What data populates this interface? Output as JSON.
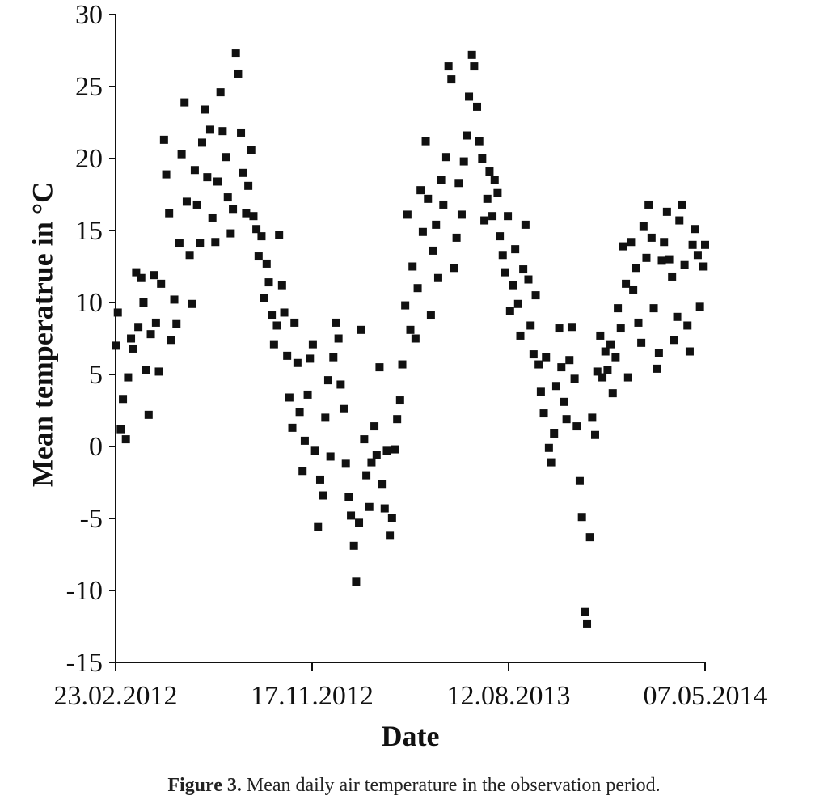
{
  "caption": {
    "label": "Figure 3.",
    "text": " Mean daily air temperature in the observation period."
  },
  "chart_data": {
    "type": "scatter",
    "title": "",
    "xlabel": "Date",
    "ylabel": "Mean temperatrue in °C",
    "xlim": [
      "23.02.2012",
      "07.05.2014"
    ],
    "ylim": [
      -15,
      30
    ],
    "yticks": [
      -15,
      -10,
      -5,
      0,
      5,
      10,
      15,
      20,
      25,
      30
    ],
    "xticks": [
      "23.02.2012",
      "17.11.2012",
      "12.08.2013",
      "07.05.2014"
    ],
    "grid": false,
    "legend": "none",
    "marker": "square",
    "color": "#111111",
    "series": [
      {
        "points": [
          [
            "23.02.2012",
            7.0
          ],
          [
            "26.02.2012",
            9.3
          ],
          [
            "01.03.2012",
            1.2
          ],
          [
            "04.03.2012",
            3.3
          ],
          [
            "08.03.2012",
            0.5
          ],
          [
            "11.03.2012",
            4.8
          ],
          [
            "15.03.2012",
            7.5
          ],
          [
            "18.03.2012",
            6.8
          ],
          [
            "22.03.2012",
            12.1
          ],
          [
            "25.03.2012",
            8.3
          ],
          [
            "29.03.2012",
            11.7
          ],
          [
            "01.04.2012",
            10.0
          ],
          [
            "04.04.2012",
            5.3
          ],
          [
            "08.04.2012",
            2.2
          ],
          [
            "11.04.2012",
            7.8
          ],
          [
            "15.04.2012",
            11.9
          ],
          [
            "18.04.2012",
            8.6
          ],
          [
            "22.04.2012",
            5.2
          ],
          [
            "25.04.2012",
            11.3
          ],
          [
            "29.04.2012",
            21.3
          ],
          [
            "02.05.2012",
            18.9
          ],
          [
            "06.05.2012",
            16.2
          ],
          [
            "09.05.2012",
            7.4
          ],
          [
            "13.05.2012",
            10.2
          ],
          [
            "16.05.2012",
            8.5
          ],
          [
            "20.05.2012",
            14.1
          ],
          [
            "23.05.2012",
            20.3
          ],
          [
            "27.05.2012",
            23.9
          ],
          [
            "30.05.2012",
            17.0
          ],
          [
            "03.06.2012",
            13.3
          ],
          [
            "06.06.2012",
            9.9
          ],
          [
            "10.06.2012",
            19.2
          ],
          [
            "13.06.2012",
            16.8
          ],
          [
            "17.06.2012",
            14.1
          ],
          [
            "20.06.2012",
            21.1
          ],
          [
            "24.06.2012",
            23.4
          ],
          [
            "27.06.2012",
            18.7
          ],
          [
            "01.07.2012",
            22.0
          ],
          [
            "04.07.2012",
            15.9
          ],
          [
            "08.07.2012",
            14.2
          ],
          [
            "11.07.2012",
            18.4
          ],
          [
            "15.07.2012",
            24.6
          ],
          [
            "18.07.2012",
            21.9
          ],
          [
            "22.07.2012",
            20.1
          ],
          [
            "25.07.2012",
            17.3
          ],
          [
            "29.07.2012",
            14.8
          ],
          [
            "01.08.2012",
            16.5
          ],
          [
            "05.08.2012",
            27.3
          ],
          [
            "08.08.2012",
            25.9
          ],
          [
            "12.08.2012",
            21.8
          ],
          [
            "15.08.2012",
            19.0
          ],
          [
            "19.08.2012",
            16.2
          ],
          [
            "22.08.2012",
            18.1
          ],
          [
            "26.08.2012",
            20.6
          ],
          [
            "29.08.2012",
            16.0
          ],
          [
            "02.09.2012",
            15.1
          ],
          [
            "05.09.2012",
            13.2
          ],
          [
            "09.09.2012",
            14.6
          ],
          [
            "12.09.2012",
            10.3
          ],
          [
            "16.09.2012",
            12.7
          ],
          [
            "19.09.2012",
            11.4
          ],
          [
            "23.09.2012",
            9.1
          ],
          [
            "26.09.2012",
            7.1
          ],
          [
            "30.09.2012",
            8.4
          ],
          [
            "03.10.2012",
            14.7
          ],
          [
            "07.10.2012",
            11.2
          ],
          [
            "10.10.2012",
            9.3
          ],
          [
            "14.10.2012",
            6.3
          ],
          [
            "17.10.2012",
            3.4
          ],
          [
            "21.10.2012",
            1.3
          ],
          [
            "24.10.2012",
            8.6
          ],
          [
            "28.10.2012",
            5.8
          ],
          [
            "31.10.2012",
            2.4
          ],
          [
            "04.11.2012",
            -1.7
          ],
          [
            "07.11.2012",
            0.4
          ],
          [
            "11.11.2012",
            3.6
          ],
          [
            "14.11.2012",
            6.1
          ],
          [
            "18.11.2012",
            7.1
          ],
          [
            "21.11.2012",
            -0.3
          ],
          [
            "25.11.2012",
            -5.6
          ],
          [
            "28.11.2012",
            -2.3
          ],
          [
            "02.12.2012",
            -3.4
          ],
          [
            "05.12.2012",
            2.0
          ],
          [
            "09.12.2012",
            4.6
          ],
          [
            "12.12.2012",
            -0.7
          ],
          [
            "16.12.2012",
            6.2
          ],
          [
            "19.12.2012",
            8.6
          ],
          [
            "23.12.2012",
            7.5
          ],
          [
            "26.12.2012",
            4.3
          ],
          [
            "30.12.2012",
            2.6
          ],
          [
            "02.01.2013",
            -1.2
          ],
          [
            "06.01.2013",
            -3.5
          ],
          [
            "09.01.2013",
            -4.8
          ],
          [
            "13.01.2013",
            -6.9
          ],
          [
            "16.01.2013",
            -9.4
          ],
          [
            "20.01.2013",
            -5.3
          ],
          [
            "23.01.2013",
            8.1
          ],
          [
            "27.01.2013",
            0.5
          ],
          [
            "30.01.2013",
            -2.0
          ],
          [
            "03.02.2013",
            -4.2
          ],
          [
            "06.02.2013",
            -1.1
          ],
          [
            "10.02.2013",
            1.4
          ],
          [
            "13.02.2013",
            -0.6
          ],
          [
            "17.02.2013",
            5.5
          ],
          [
            "20.02.2013",
            -2.6
          ],
          [
            "24.02.2013",
            -4.3
          ],
          [
            "27.02.2013",
            -0.3
          ],
          [
            "03.03.2013",
            -6.2
          ],
          [
            "06.03.2013",
            -5.0
          ],
          [
            "10.03.2013",
            -0.2
          ],
          [
            "13.03.2013",
            1.9
          ],
          [
            "17.03.2013",
            3.2
          ],
          [
            "20.03.2013",
            5.7
          ],
          [
            "24.03.2013",
            9.8
          ],
          [
            "27.03.2013",
            16.1
          ],
          [
            "31.03.2013",
            8.1
          ],
          [
            "03.04.2013",
            12.5
          ],
          [
            "07.04.2013",
            7.5
          ],
          [
            "10.04.2013",
            11.0
          ],
          [
            "14.04.2013",
            17.8
          ],
          [
            "17.04.2013",
            14.9
          ],
          [
            "21.04.2013",
            21.2
          ],
          [
            "24.04.2013",
            17.2
          ],
          [
            "28.04.2013",
            9.1
          ],
          [
            "01.05.2013",
            13.6
          ],
          [
            "05.05.2013",
            15.4
          ],
          [
            "08.05.2013",
            11.7
          ],
          [
            "12.05.2013",
            18.5
          ],
          [
            "15.05.2013",
            16.8
          ],
          [
            "19.05.2013",
            20.1
          ],
          [
            "22.05.2013",
            26.4
          ],
          [
            "26.05.2013",
            25.5
          ],
          [
            "29.05.2013",
            12.4
          ],
          [
            "02.06.2013",
            14.5
          ],
          [
            "05.06.2013",
            18.3
          ],
          [
            "09.06.2013",
            16.1
          ],
          [
            "12.06.2013",
            19.8
          ],
          [
            "16.06.2013",
            21.6
          ],
          [
            "19.06.2013",
            24.3
          ],
          [
            "23.06.2013",
            27.2
          ],
          [
            "26.06.2013",
            26.4
          ],
          [
            "30.06.2013",
            23.6
          ],
          [
            "03.07.2013",
            21.2
          ],
          [
            "07.07.2013",
            20.0
          ],
          [
            "10.07.2013",
            15.7
          ],
          [
            "14.07.2013",
            17.2
          ],
          [
            "17.07.2013",
            19.1
          ],
          [
            "21.07.2013",
            16.0
          ],
          [
            "24.07.2013",
            18.5
          ],
          [
            "28.07.2013",
            17.6
          ],
          [
            "31.07.2013",
            14.6
          ],
          [
            "04.08.2013",
            13.3
          ],
          [
            "07.08.2013",
            12.1
          ],
          [
            "11.08.2013",
            16.0
          ],
          [
            "14.08.2013",
            9.4
          ],
          [
            "18.08.2013",
            11.2
          ],
          [
            "21.08.2013",
            13.7
          ],
          [
            "25.08.2013",
            9.9
          ],
          [
            "28.08.2013",
            7.7
          ],
          [
            "01.09.2013",
            12.3
          ],
          [
            "04.09.2013",
            15.4
          ],
          [
            "08.09.2013",
            11.6
          ],
          [
            "11.09.2013",
            8.4
          ],
          [
            "15.09.2013",
            6.4
          ],
          [
            "18.09.2013",
            10.5
          ],
          [
            "22.09.2013",
            5.7
          ],
          [
            "25.09.2013",
            3.8
          ],
          [
            "29.09.2013",
            2.3
          ],
          [
            "02.10.2013",
            6.2
          ],
          [
            "06.10.2013",
            -0.1
          ],
          [
            "09.10.2013",
            -1.1
          ],
          [
            "13.10.2013",
            0.9
          ],
          [
            "16.10.2013",
            4.2
          ],
          [
            "20.10.2013",
            8.2
          ],
          [
            "23.10.2013",
            5.5
          ],
          [
            "27.10.2013",
            3.1
          ],
          [
            "30.10.2013",
            1.9
          ],
          [
            "03.11.2013",
            6.0
          ],
          [
            "06.11.2013",
            8.3
          ],
          [
            "10.11.2013",
            4.7
          ],
          [
            "13.11.2013",
            1.4
          ],
          [
            "17.11.2013",
            -2.4
          ],
          [
            "20.11.2013",
            -4.9
          ],
          [
            "24.11.2013",
            -11.5
          ],
          [
            "27.11.2013",
            -12.3
          ],
          [
            "01.12.2013",
            -6.3
          ],
          [
            "04.12.2013",
            2.0
          ],
          [
            "08.12.2013",
            0.8
          ],
          [
            "11.12.2013",
            5.2
          ],
          [
            "15.12.2013",
            7.7
          ],
          [
            "18.12.2013",
            4.8
          ],
          [
            "22.12.2013",
            6.6
          ],
          [
            "25.12.2013",
            5.3
          ],
          [
            "29.12.2013",
            7.1
          ],
          [
            "01.01.2014",
            3.7
          ],
          [
            "05.01.2014",
            6.2
          ],
          [
            "08.01.2014",
            9.6
          ],
          [
            "12.01.2014",
            8.2
          ],
          [
            "15.01.2014",
            13.9
          ],
          [
            "19.01.2014",
            11.3
          ],
          [
            "22.01.2014",
            4.8
          ],
          [
            "26.01.2014",
            14.2
          ],
          [
            "29.01.2014",
            10.9
          ],
          [
            "02.02.2014",
            12.4
          ],
          [
            "05.02.2014",
            8.6
          ],
          [
            "09.02.2014",
            7.2
          ],
          [
            "12.02.2014",
            15.3
          ],
          [
            "16.02.2014",
            13.1
          ],
          [
            "19.02.2014",
            16.8
          ],
          [
            "23.02.2014",
            14.5
          ],
          [
            "26.02.2014",
            9.6
          ],
          [
            "02.03.2014",
            5.4
          ],
          [
            "05.03.2014",
            6.5
          ],
          [
            "09.03.2014",
            12.9
          ],
          [
            "12.03.2014",
            14.2
          ],
          [
            "16.03.2014",
            16.3
          ],
          [
            "19.03.2014",
            13.0
          ],
          [
            "23.03.2014",
            11.8
          ],
          [
            "26.03.2014",
            7.4
          ],
          [
            "30.03.2014",
            9.0
          ],
          [
            "02.04.2014",
            15.7
          ],
          [
            "06.04.2014",
            16.8
          ],
          [
            "09.04.2014",
            12.6
          ],
          [
            "13.04.2014",
            8.4
          ],
          [
            "16.04.2014",
            6.6
          ],
          [
            "20.04.2014",
            14.0
          ],
          [
            "23.04.2014",
            15.1
          ],
          [
            "27.04.2014",
            13.3
          ],
          [
            "30.04.2014",
            9.7
          ],
          [
            "04.05.2014",
            12.5
          ],
          [
            "07.05.2014",
            14.0
          ]
        ]
      }
    ]
  }
}
